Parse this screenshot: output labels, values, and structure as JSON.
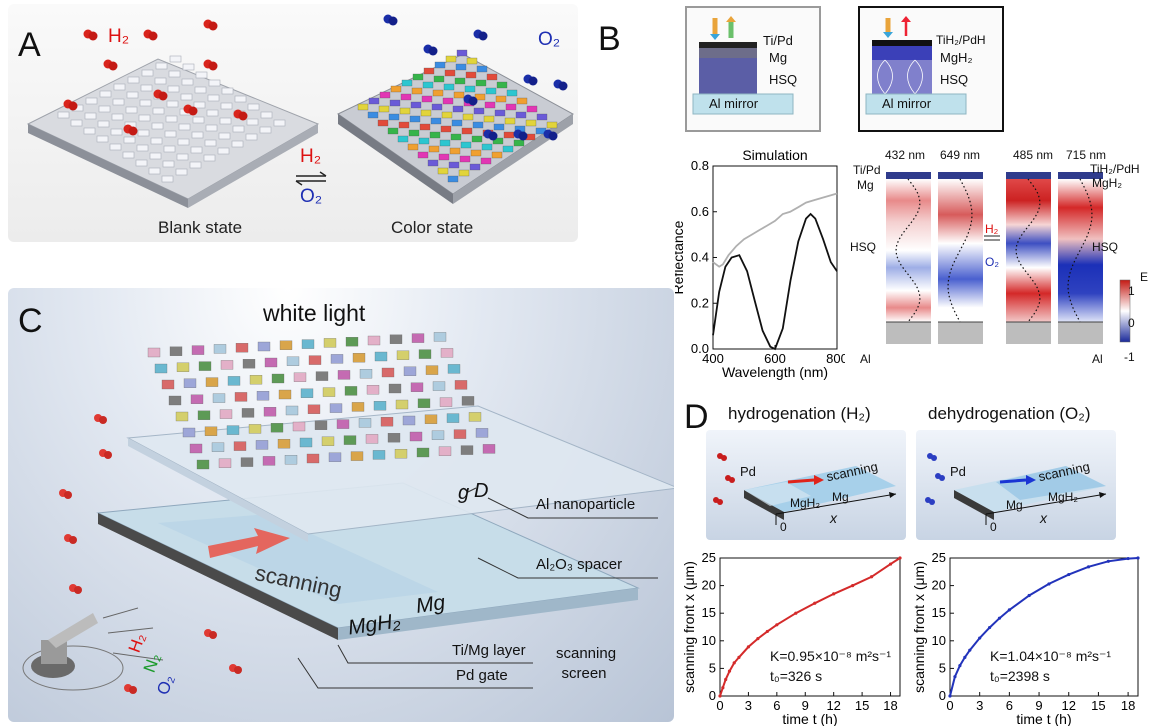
{
  "panels": {
    "A": {
      "label": "A",
      "h2": "H₂",
      "o2": "O₂",
      "switch_h2": "H₂",
      "switch_o2": "O₂",
      "blank": "Blank state",
      "color": "Color state"
    },
    "B": {
      "label": "B",
      "inset_left": {
        "layers": [
          "Ti/Pd",
          "Mg",
          "HSQ"
        ],
        "base": "Al mirror"
      },
      "inset_right": {
        "layers": [
          "TiH₂/PdH",
          "MgH₂",
          "HSQ"
        ],
        "base": "Al mirror"
      },
      "field_labels_left": [
        "Ti/Pd",
        "Mg",
        "HSQ",
        "Al"
      ],
      "field_labels_right": [
        "TiH₂/PdH",
        "MgH₂",
        "HSQ",
        "Al"
      ],
      "field_headers": [
        "432 nm",
        "649 nm",
        "485 nm",
        "715 nm"
      ],
      "switch_h2": "H₂",
      "switch_o2": "O₂",
      "colorbar": {
        "title": "E",
        "ticks": [
          "1",
          "0",
          "-1"
        ]
      }
    },
    "C": {
      "label": "C",
      "white_light": "white light",
      "gap_labels": {
        "g": "g",
        "D": "D"
      },
      "callouts": [
        "Al nanoparticle",
        "Al₂O₃ spacer",
        "Ti/Mg layer",
        "Pd gate"
      ],
      "screen_label": "scanning screen",
      "scanning": "scanning",
      "mgh2": "MgH₂",
      "mg": "Mg",
      "gases": [
        "H₂",
        "N₂",
        "O₂"
      ]
    },
    "D": {
      "label": "D",
      "left_title": "hydrogenation (H₂)",
      "right_title": "dehydrogenation (O₂)",
      "left_schem": {
        "pd": "Pd",
        "scanning": "scanning",
        "a": "MgH₂",
        "b": "Mg",
        "zero": "0",
        "x": "x"
      },
      "right_schem": {
        "pd": "Pd",
        "scanning": "scanning",
        "a": "Mg",
        "b": "MgH₂",
        "zero": "0",
        "x": "x"
      },
      "left_k": "K=0.95×10⁻⁸ m²s⁻¹",
      "left_t0": "t₀=326 s",
      "right_k": "K=1.04×10⁻⁸ m²s⁻¹",
      "right_t0": "t₀=2398 s"
    }
  },
  "chart_data": [
    {
      "type": "line",
      "title": "Simulation",
      "xlabel": "Wavelength (nm)",
      "ylabel": "Reflectance",
      "xlim": [
        400,
        800
      ],
      "ylim": [
        0.0,
        0.8
      ],
      "xticks": [
        400,
        600,
        800
      ],
      "yticks": [
        0.0,
        0.2,
        0.4,
        0.6,
        0.8
      ],
      "series": [
        {
          "color": "#b0b0b0",
          "x": [
            400,
            420,
            432,
            450,
            475,
            500,
            525,
            550,
            575,
            600,
            625,
            649,
            675,
            700,
            725,
            750,
            775,
            800
          ],
          "y": [
            0.38,
            0.36,
            0.37,
            0.41,
            0.45,
            0.48,
            0.5,
            0.52,
            0.54,
            0.56,
            0.59,
            0.6,
            0.62,
            0.64,
            0.65,
            0.66,
            0.67,
            0.68
          ]
        },
        {
          "color": "#111111",
          "x": [
            400,
            420,
            440,
            460,
            485,
            510,
            535,
            560,
            585,
            600,
            625,
            650,
            675,
            700,
            715,
            730,
            755,
            780,
            800
          ],
          "y": [
            0.06,
            0.25,
            0.36,
            0.4,
            0.41,
            0.34,
            0.21,
            0.08,
            0.01,
            0.0,
            0.09,
            0.3,
            0.47,
            0.57,
            0.59,
            0.57,
            0.48,
            0.38,
            0.34
          ]
        }
      ]
    },
    {
      "type": "line",
      "xlabel": "time t (h)",
      "ylabel": "scanning front x (μm)",
      "xlim": [
        0,
        19
      ],
      "ylim": [
        0,
        25
      ],
      "xticks": [
        0,
        3,
        6,
        9,
        12,
        15,
        18
      ],
      "yticks": [
        0,
        5,
        10,
        15,
        20,
        25
      ],
      "series": [
        {
          "color": "#d42a2a",
          "x": [
            0,
            0.3,
            0.6,
            1,
            1.5,
            2,
            3,
            4,
            5,
            6,
            8,
            10,
            12,
            14,
            16,
            18,
            19
          ],
          "y": [
            0,
            1.5,
            3,
            4.5,
            6,
            7,
            8.9,
            10.4,
            11.7,
            12.9,
            15,
            16.8,
            18.5,
            20,
            21.6,
            23.9,
            25
          ]
        }
      ]
    },
    {
      "type": "line",
      "xlabel": "time t (h)",
      "ylabel": "scanning front x (μm)",
      "xlim": [
        0,
        19
      ],
      "ylim": [
        0,
        25
      ],
      "xticks": [
        0,
        3,
        6,
        9,
        12,
        15,
        18
      ],
      "yticks": [
        0,
        5,
        10,
        15,
        20,
        25
      ],
      "series": [
        {
          "color": "#2233bb",
          "x": [
            0,
            0.5,
            1,
            1.5,
            2,
            3,
            4,
            5,
            6,
            8,
            10,
            12,
            14,
            16,
            18,
            19
          ],
          "y": [
            0,
            3.5,
            5.5,
            7,
            8.3,
            10.5,
            12.4,
            14.1,
            15.6,
            18.2,
            20.3,
            22,
            23.4,
            24.4,
            24.9,
            25
          ]
        }
      ]
    }
  ]
}
